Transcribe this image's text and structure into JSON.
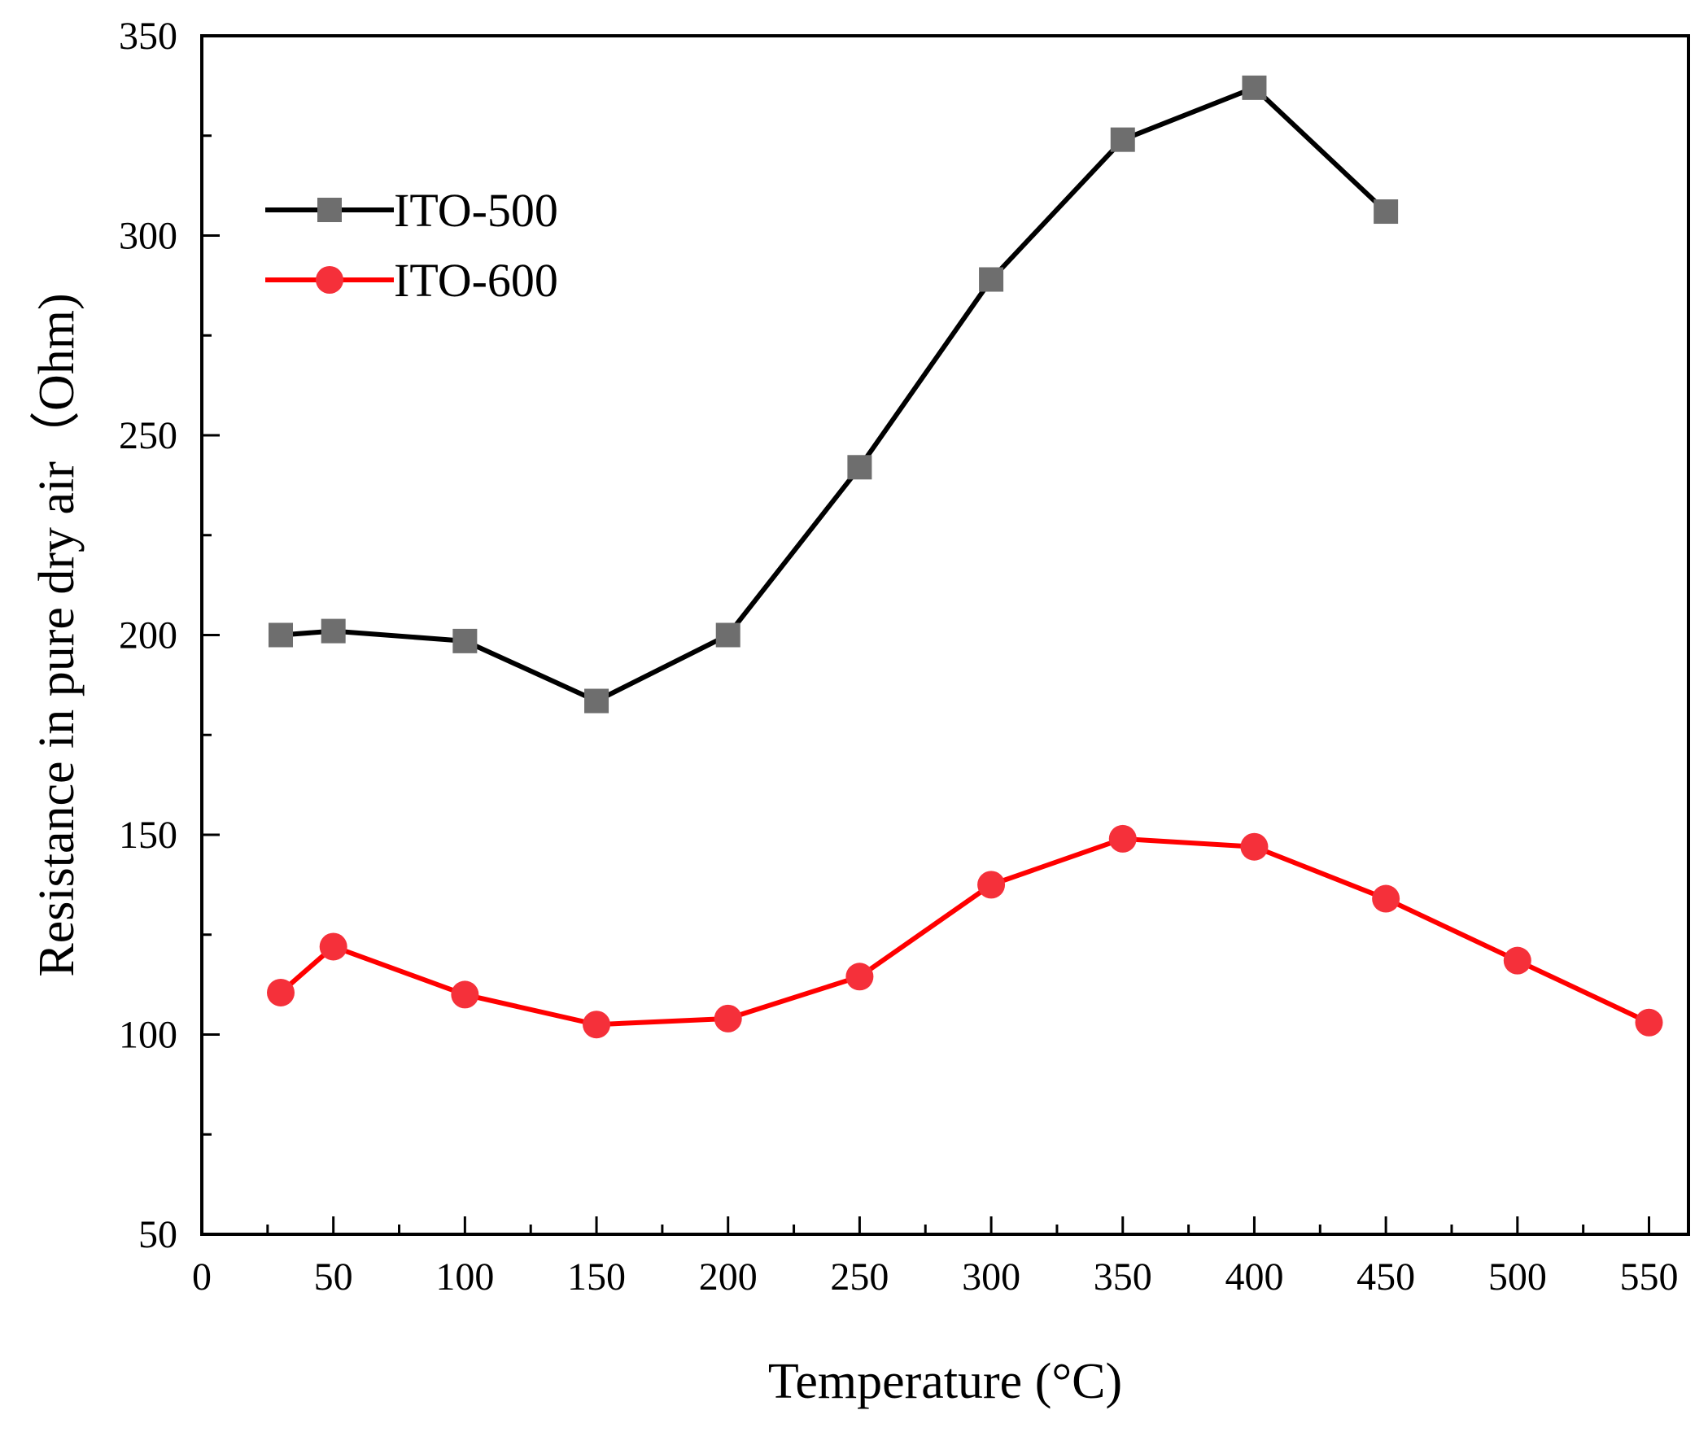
{
  "chart_data": {
    "type": "line",
    "title": "",
    "xlabel": "Temperature (°C)",
    "ylabel": "Resistance in pure dry air（Ohm)",
    "xlim": [
      0,
      565
    ],
    "ylim": [
      50,
      350
    ],
    "xticks": [
      0,
      50,
      100,
      150,
      200,
      250,
      300,
      350,
      400,
      450,
      500,
      550
    ],
    "yticks": [
      50,
      100,
      150,
      200,
      250,
      300,
      350
    ],
    "x_minor_step": 25,
    "y_minor_step": 25,
    "grid": false,
    "legend_position": "top-left",
    "series": [
      {
        "name": "ITO-500",
        "line_color": "#000000",
        "marker": "square",
        "marker_color": "#6e6e6e",
        "x": [
          30,
          50,
          100,
          150,
          200,
          250,
          300,
          350,
          400,
          450
        ],
        "values": [
          200,
          201,
          198.5,
          183.5,
          200,
          242,
          289,
          324,
          337,
          306
        ]
      },
      {
        "name": "ITO-600",
        "line_color": "#ff0000",
        "marker": "circle",
        "marker_color": "#f5303a",
        "x": [
          30,
          50,
          100,
          150,
          200,
          250,
          300,
          350,
          400,
          450,
          500,
          550
        ],
        "values": [
          110.5,
          122,
          110,
          102.5,
          104,
          114.5,
          137.5,
          149,
          147,
          134,
          118.5,
          103
        ]
      }
    ]
  }
}
